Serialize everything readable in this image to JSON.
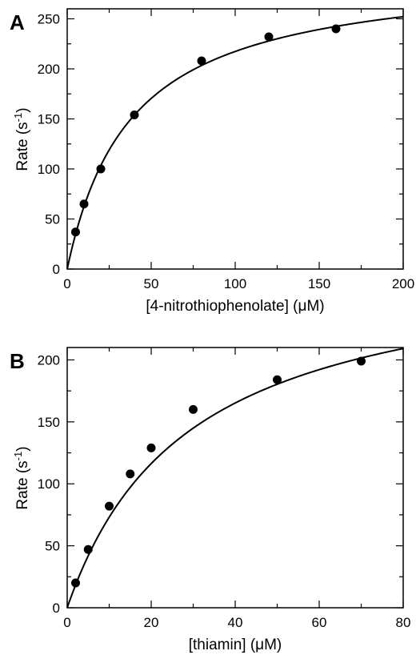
{
  "chart_data": [
    {
      "type": "scatter",
      "panel_label": "A",
      "xlabel": "[4-nitrothiophenolate] (μM)",
      "ylabel_main": "Rate (s",
      "ylabel_sup": "-1",
      "ylabel_end": ")",
      "xlim": [
        0,
        200
      ],
      "ylim": [
        0,
        260
      ],
      "xticks": [
        0,
        50,
        100,
        150,
        200
      ],
      "yticks": [
        0,
        50,
        100,
        150,
        200,
        250
      ],
      "x": [
        5,
        10,
        20,
        40,
        80,
        120,
        160
      ],
      "y": [
        37,
        65,
        100,
        154,
        208,
        232,
        240
      ],
      "fit": {
        "model": "michaelis-menten",
        "vmax": 300,
        "km": 38
      },
      "grid": false,
      "color": "#000000"
    },
    {
      "type": "scatter",
      "panel_label": "B",
      "xlabel": "[thiamin] (μM)",
      "ylabel_main": "Rate (s",
      "ylabel_sup": "-1",
      "ylabel_end": ")",
      "xlim": [
        0,
        80
      ],
      "ylim": [
        0,
        210
      ],
      "xticks": [
        0,
        20,
        40,
        60,
        80
      ],
      "yticks": [
        0,
        50,
        100,
        150,
        200
      ],
      "x": [
        2,
        5,
        10,
        15,
        20,
        30,
        50,
        70
      ],
      "y": [
        20,
        47,
        82,
        108,
        129,
        160,
        184,
        199
      ],
      "fit": {
        "model": "michaelis-menten",
        "vmax": 285,
        "km": 29
      },
      "grid": false,
      "color": "#000000"
    }
  ]
}
